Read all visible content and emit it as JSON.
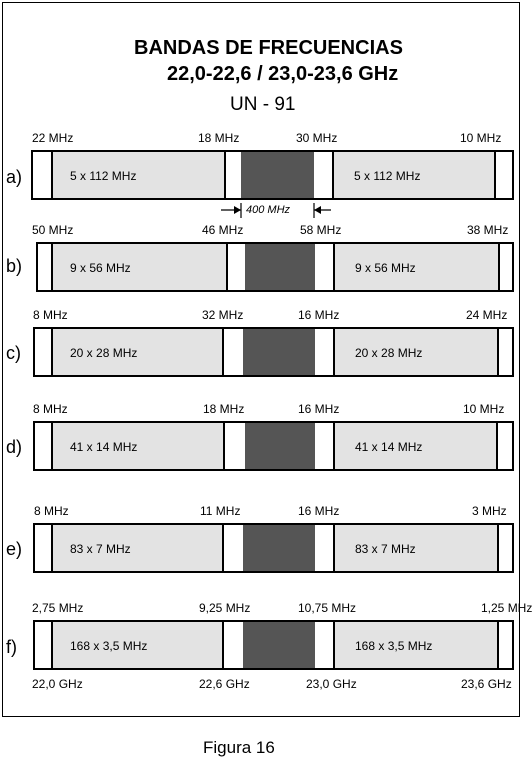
{
  "title": {
    "line1": "BANDAS DE FRECUENCIAS",
    "line2": "22,0-22,6 / 23,0-23,6 GHz",
    "line3": "UN - 91"
  },
  "rows": [
    {
      "label": "a)",
      "edge_left": "22 MHz",
      "gap_left": "18 MHz",
      "gap_right": "30 MHz",
      "edge_right": "10 MHz",
      "channels_left": "5 x 112 MHz",
      "channels_right": "5 x 112 MHz"
    },
    {
      "label": "b)",
      "edge_left": "50 MHz",
      "gap_left": "46 MHz",
      "gap_right": "58 MHz",
      "edge_right": "38 MHz",
      "channels_left": "9 x 56 MHz",
      "channels_right": "9 x 56 MHz"
    },
    {
      "label": "c)",
      "edge_left": "8 MHz",
      "gap_left": "32 MHz",
      "gap_right": "16 MHz",
      "edge_right": "24 MHz",
      "channels_left": "20 x 28 MHz",
      "channels_right": "20 x 28 MHz"
    },
    {
      "label": "d)",
      "edge_left": "8 MHz",
      "gap_left": "18 MHz",
      "gap_right": "16 MHz",
      "edge_right": "10 MHz",
      "channels_left": "41 x 14 MHz",
      "channels_right": "41 x 14 MHz"
    },
    {
      "label": "e)",
      "edge_left": "8 MHz",
      "gap_left": "11 MHz",
      "gap_right": "16 MHz",
      "edge_right": "3 MHz",
      "channels_left": "83 x 7 MHz",
      "channels_right": "83 x 7 MHz"
    },
    {
      "label": "f)",
      "edge_left": "2,75 MHz",
      "gap_left": "9,25 MHz",
      "gap_right": "10,75 MHz",
      "edge_right": "1,25 MHz",
      "channels_left": "168 x 3,5 MHz",
      "channels_right": "168 x 3,5 MHz"
    }
  ],
  "gap_width_label": "400 MHz",
  "axis": {
    "f1": "22,0 GHz",
    "f2": "22,6 GHz",
    "f3": "23,0 GHz",
    "f4": "23,6 GHz"
  },
  "caption": "Figura 16",
  "colors": {
    "channel_fill": "#e3e3e3",
    "center_gap": "#555555"
  }
}
